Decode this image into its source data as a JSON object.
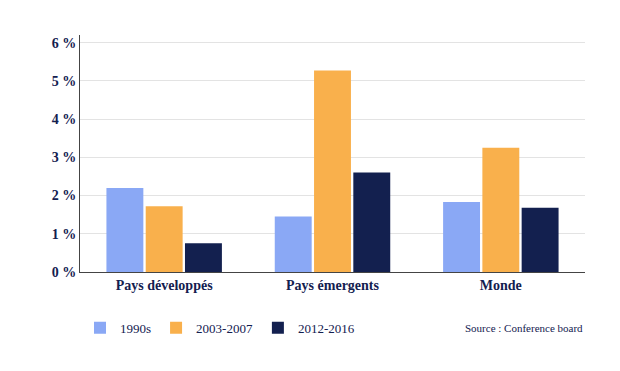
{
  "chart_data": {
    "type": "bar",
    "categories": [
      "Pays développés",
      "Pays émergents",
      "Monde"
    ],
    "series": [
      {
        "name": "1990s",
        "color": "#8aa8f5",
        "values": [
          2.2,
          1.45,
          1.83
        ]
      },
      {
        "name": "2003-2007",
        "color": "#f9b04c",
        "values": [
          1.72,
          5.27,
          3.25
        ]
      },
      {
        "name": "2012-2016",
        "color": "#13204f",
        "values": [
          0.75,
          2.6,
          1.68
        ]
      }
    ],
    "ylim": [
      0,
      6.2
    ],
    "yticks": [
      {
        "value": 0,
        "label": "0 %"
      },
      {
        "value": 1,
        "label": "1 %"
      },
      {
        "value": 2,
        "label": "2 %"
      },
      {
        "value": 3,
        "label": "3 %"
      },
      {
        "value": 4,
        "label": "4 %"
      },
      {
        "value": 5,
        "label": "5 %"
      },
      {
        "value": 6,
        "label": "6 %"
      }
    ],
    "grid": true,
    "legend": "bottom",
    "annotations": [
      "Source : Conference board"
    ]
  }
}
